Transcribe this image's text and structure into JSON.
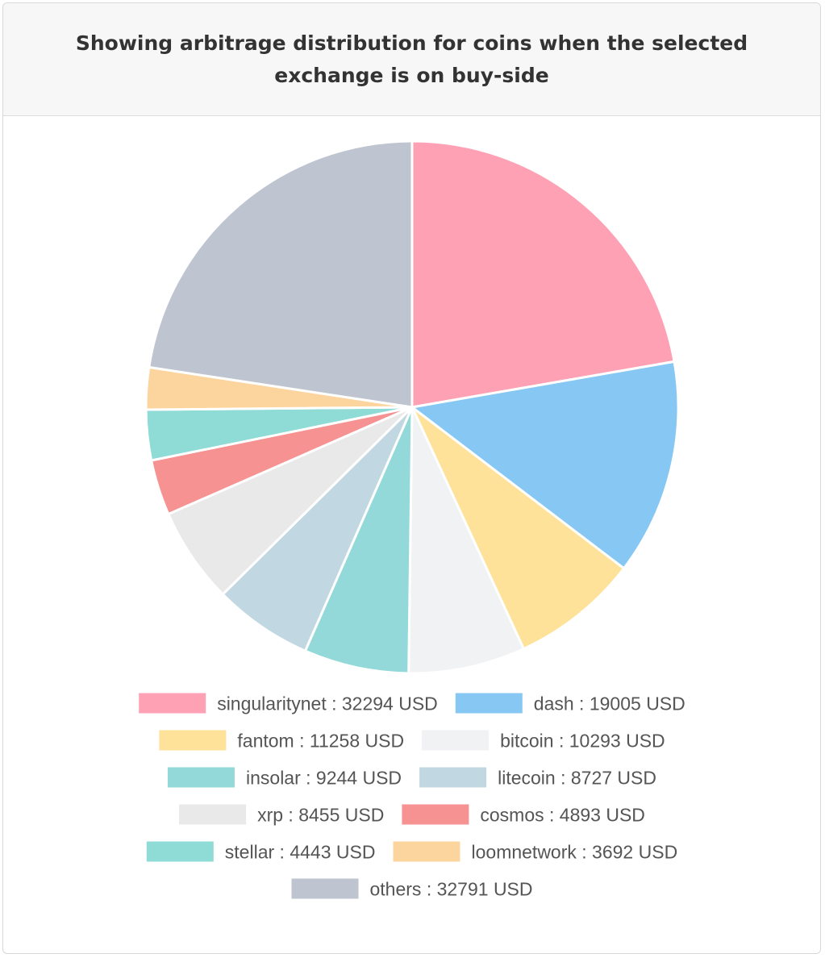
{
  "header": {
    "title": "Showing arbitrage distribution for coins when the selected exchange is on buy-side"
  },
  "chart_data": {
    "type": "pie",
    "title": "Showing arbitrage distribution for coins when the selected exchange is on buy-side",
    "unit": "USD",
    "legend_position": "bottom",
    "slices": [
      {
        "label": "singularitynet",
        "value": 32294,
        "color": "#ffa1b5"
      },
      {
        "label": "dash",
        "value": 19005,
        "color": "#86c7f3"
      },
      {
        "label": "fantom",
        "value": 11258,
        "color": "#ffe29a"
      },
      {
        "label": "bitcoin",
        "value": 10293,
        "color": "#f1f2f4"
      },
      {
        "label": "insolar",
        "value": 9244,
        "color": "#93d9d9"
      },
      {
        "label": "litecoin",
        "value": 8727,
        "color": "#c1d7e2"
      },
      {
        "label": "xrp",
        "value": 8455,
        "color": "#e9e9e9"
      },
      {
        "label": "cosmos",
        "value": 4893,
        "color": "#f69292"
      },
      {
        "label": "stellar",
        "value": 4443,
        "color": "#8fdbd6"
      },
      {
        "label": "loomnetwork",
        "value": 3692,
        "color": "#fcd49e"
      },
      {
        "label": "others",
        "value": 32791,
        "color": "#bec4d0"
      }
    ]
  }
}
